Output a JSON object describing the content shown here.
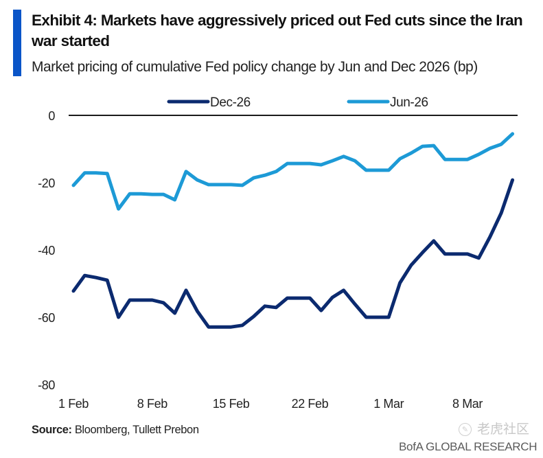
{
  "header": {
    "title": "Exhibit 4: Markets have aggressively priced out Fed cuts since the Iran war started",
    "subtitle": "Market pricing of cumulative Fed policy change by Jun and Dec 2026 (bp)",
    "accent_color": "#0a55c8"
  },
  "footer": {
    "source_label": "Source:",
    "source_text": "Bloomberg, Tullett Prebon",
    "brand": "BofA GLOBAL RESEARCH",
    "watermark": "老虎社区"
  },
  "chart_data": {
    "type": "line",
    "title": "Market pricing of cumulative Fed policy change by Jun and Dec 2026 (bp)",
    "xlabel": "",
    "ylabel": "",
    "ylim": [
      -80,
      0
    ],
    "yticks": [
      0,
      -20,
      -40,
      -60,
      -80
    ],
    "xtick_labels": [
      "1 Feb",
      "8 Feb",
      "15 Feb",
      "22 Feb",
      "1 Mar",
      "8 Mar"
    ],
    "xtick_index": [
      0,
      7,
      14,
      21,
      28,
      35
    ],
    "grid": false,
    "zero_line": true,
    "legend_position": "top-center",
    "x": [
      "1 Feb",
      "2 Feb",
      "3 Feb",
      "4 Feb",
      "5 Feb",
      "6 Feb",
      "7 Feb",
      "8 Feb",
      "9 Feb",
      "10 Feb",
      "11 Feb",
      "12 Feb",
      "13 Feb",
      "14 Feb",
      "15 Feb",
      "16 Feb",
      "17 Feb",
      "18 Feb",
      "19 Feb",
      "20 Feb",
      "21 Feb",
      "22 Feb",
      "23 Feb",
      "24 Feb",
      "25 Feb",
      "26 Feb",
      "27 Feb",
      "28 Feb",
      "1 Mar",
      "2 Mar",
      "3 Mar",
      "4 Mar",
      "5 Mar",
      "6 Mar",
      "7 Mar",
      "8 Mar",
      "9 Mar",
      "10 Mar",
      "11 Mar",
      "12 Mar"
    ],
    "series": [
      {
        "name": "Dec-26",
        "color": "#0b2a6f",
        "values": [
          -52.2,
          -47.6,
          -48.2,
          -49.0,
          -60.0,
          -54.9,
          -54.9,
          -54.9,
          -55.7,
          -58.8,
          -52.0,
          -58.2,
          -62.9,
          -62.9,
          -62.9,
          -62.4,
          -59.8,
          -56.7,
          -57.1,
          -54.3,
          -54.3,
          -54.3,
          -58.0,
          -54.1,
          -52.0,
          -56.1,
          -60.0,
          -60.0,
          -60.0,
          -49.8,
          -44.5,
          -40.8,
          -37.3,
          -41.2,
          -41.2,
          -41.2,
          -42.4,
          -36.1,
          -29.0,
          -19.2
        ]
      },
      {
        "name": "Jun-26",
        "color": "#1d9ad6",
        "values": [
          -20.8,
          -17.1,
          -17.1,
          -17.3,
          -27.8,
          -23.3,
          -23.3,
          -23.5,
          -23.5,
          -25.1,
          -16.7,
          -19.2,
          -20.6,
          -20.6,
          -20.6,
          -20.8,
          -18.6,
          -17.8,
          -16.7,
          -14.3,
          -14.3,
          -14.3,
          -14.7,
          -13.5,
          -12.2,
          -13.5,
          -16.3,
          -16.3,
          -16.3,
          -12.9,
          -11.2,
          -9.2,
          -9.0,
          -13.1,
          -13.1,
          -13.1,
          -11.6,
          -9.8,
          -8.6,
          -5.5
        ]
      }
    ]
  }
}
